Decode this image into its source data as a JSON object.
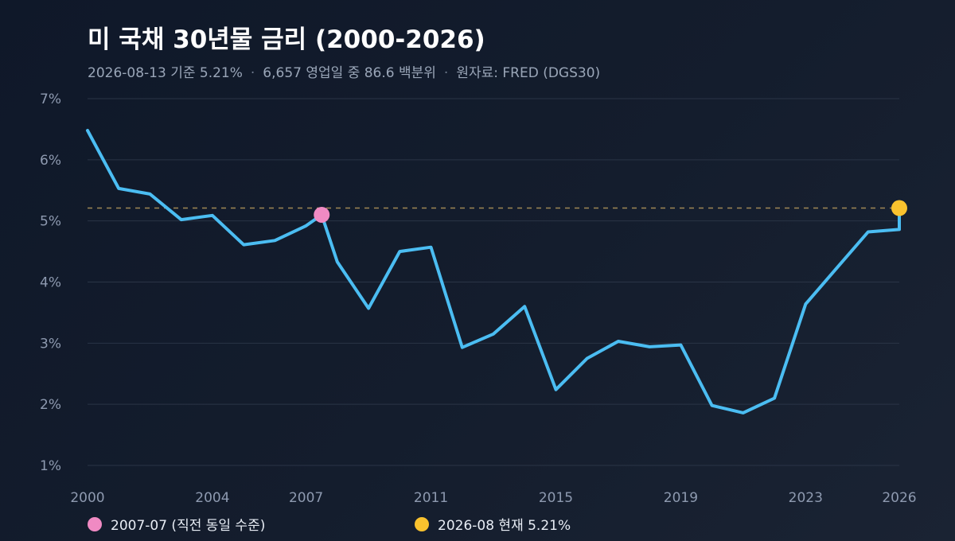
{
  "header": {
    "title": "미 국채 30년물 금리 (2000-2026)",
    "subtitle_parts": [
      "2026-08-13 기준 5.21%",
      "6,657 영업일 중 86.6 백분위",
      "원자료: FRED (DGS30)"
    ],
    "subtitle_separator": "·"
  },
  "colors": {
    "line": "#4bbdf2",
    "reference_line": "#b89a5c",
    "grid": "#2a3446",
    "axis_text": "#8e9ab0",
    "marker_past": "#f08ac3",
    "marker_current": "#f9c22e"
  },
  "chart_data": {
    "type": "line",
    "title": "미 국채 30년물 금리 (2000-2026)",
    "xlabel": "",
    "ylabel": "",
    "x": [
      2000.0,
      2001.0,
      2002.0,
      2003.0,
      2004.0,
      2005.0,
      2006.0,
      2007.0,
      2008.0,
      2009.0,
      2010.0,
      2011.0,
      2012.0,
      2013.0,
      2014.0,
      2015.0,
      2016.0,
      2017.0,
      2018.0,
      2019.0,
      2020.0,
      2021.0,
      2022.0,
      2023.0,
      2024.0,
      2025.0,
      2026.0
    ],
    "values": [
      6.48,
      5.53,
      5.44,
      5.02,
      5.09,
      4.61,
      4.68,
      4.92,
      4.33,
      3.57,
      4.5,
      4.57,
      2.93,
      3.15,
      3.6,
      2.24,
      2.75,
      3.03,
      2.94,
      2.97,
      1.98,
      1.86,
      2.1,
      3.64,
      4.23,
      4.82,
      4.86
    ],
    "x_ticks": [
      2000,
      2004,
      2007,
      2011,
      2015,
      2019,
      2023,
      2026
    ],
    "y_ticks": [
      1,
      2,
      3,
      4,
      5,
      6,
      7
    ],
    "y_tick_labels": [
      "1%",
      "2%",
      "3%",
      "4%",
      "5%",
      "6%",
      "7%"
    ],
    "xlim": [
      2000,
      2026
    ],
    "ylim": [
      1,
      7
    ],
    "grid": true,
    "reference_value": 5.21,
    "markers": [
      {
        "x": 2007.5,
        "y": 5.1,
        "label": "2007-07 (직전 동일 수준)",
        "color": "#f08ac3"
      },
      {
        "x": 2026.0,
        "y": 5.21,
        "label": "2026-08 현재 5.21%",
        "color": "#f9c22e"
      }
    ]
  },
  "legend": {
    "items": [
      {
        "label": "2007-07 (직전 동일 수준)",
        "color": "#f08ac3"
      },
      {
        "label": "2026-08 현재 5.21%",
        "color": "#f9c22e"
      }
    ]
  }
}
